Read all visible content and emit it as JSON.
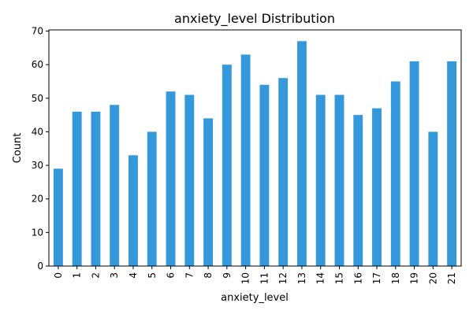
{
  "chart_data": {
    "type": "bar",
    "title": "anxiety_level Distribution",
    "xlabel": "anxiety_level",
    "ylabel": "Count",
    "categories": [
      "0",
      "1",
      "2",
      "3",
      "4",
      "5",
      "6",
      "7",
      "8",
      "9",
      "10",
      "11",
      "12",
      "13",
      "14",
      "15",
      "16",
      "17",
      "18",
      "19",
      "20",
      "21"
    ],
    "values": [
      29,
      46,
      46,
      48,
      33,
      40,
      52,
      51,
      44,
      60,
      63,
      54,
      56,
      67,
      51,
      51,
      45,
      47,
      55,
      61,
      40,
      61
    ],
    "ylim": [
      0,
      70.35
    ],
    "yticks": [
      0,
      10,
      20,
      30,
      40,
      50,
      60,
      70
    ],
    "grid": false,
    "bar_color": "#3498db"
  }
}
